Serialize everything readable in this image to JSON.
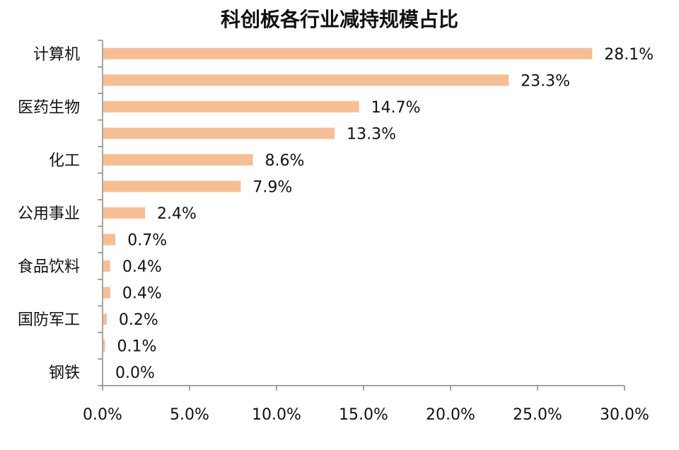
{
  "chart_data": {
    "type": "bar",
    "orientation": "horizontal",
    "title": "科创板各行业减持规模占比",
    "categories": [
      "计算机",
      "",
      "医药生物",
      "",
      "化工",
      "",
      "公用事业",
      "",
      "食品饮料",
      "",
      "国防军工",
      "",
      "钢铁"
    ],
    "values": [
      28.1,
      23.3,
      14.7,
      13.3,
      8.6,
      7.9,
      2.4,
      0.7,
      0.4,
      0.4,
      0.2,
      0.1,
      0.0
    ],
    "value_labels": [
      "28.1%",
      "23.3%",
      "14.7%",
      "13.3%",
      "8.6%",
      "7.9%",
      "2.4%",
      "0.7%",
      "0.4%",
      "0.4%",
      "0.2%",
      "0.1%",
      "0.0%"
    ],
    "x_ticks": [
      "0.0%",
      "5.0%",
      "10.0%",
      "15.0%",
      "20.0%",
      "25.0%",
      "30.0%"
    ],
    "xlim": [
      0,
      30
    ],
    "xlabel": "",
    "ylabel": "",
    "grid": false,
    "legend": "none",
    "bar_color": "#f8be93",
    "axis_color": "#888888"
  }
}
